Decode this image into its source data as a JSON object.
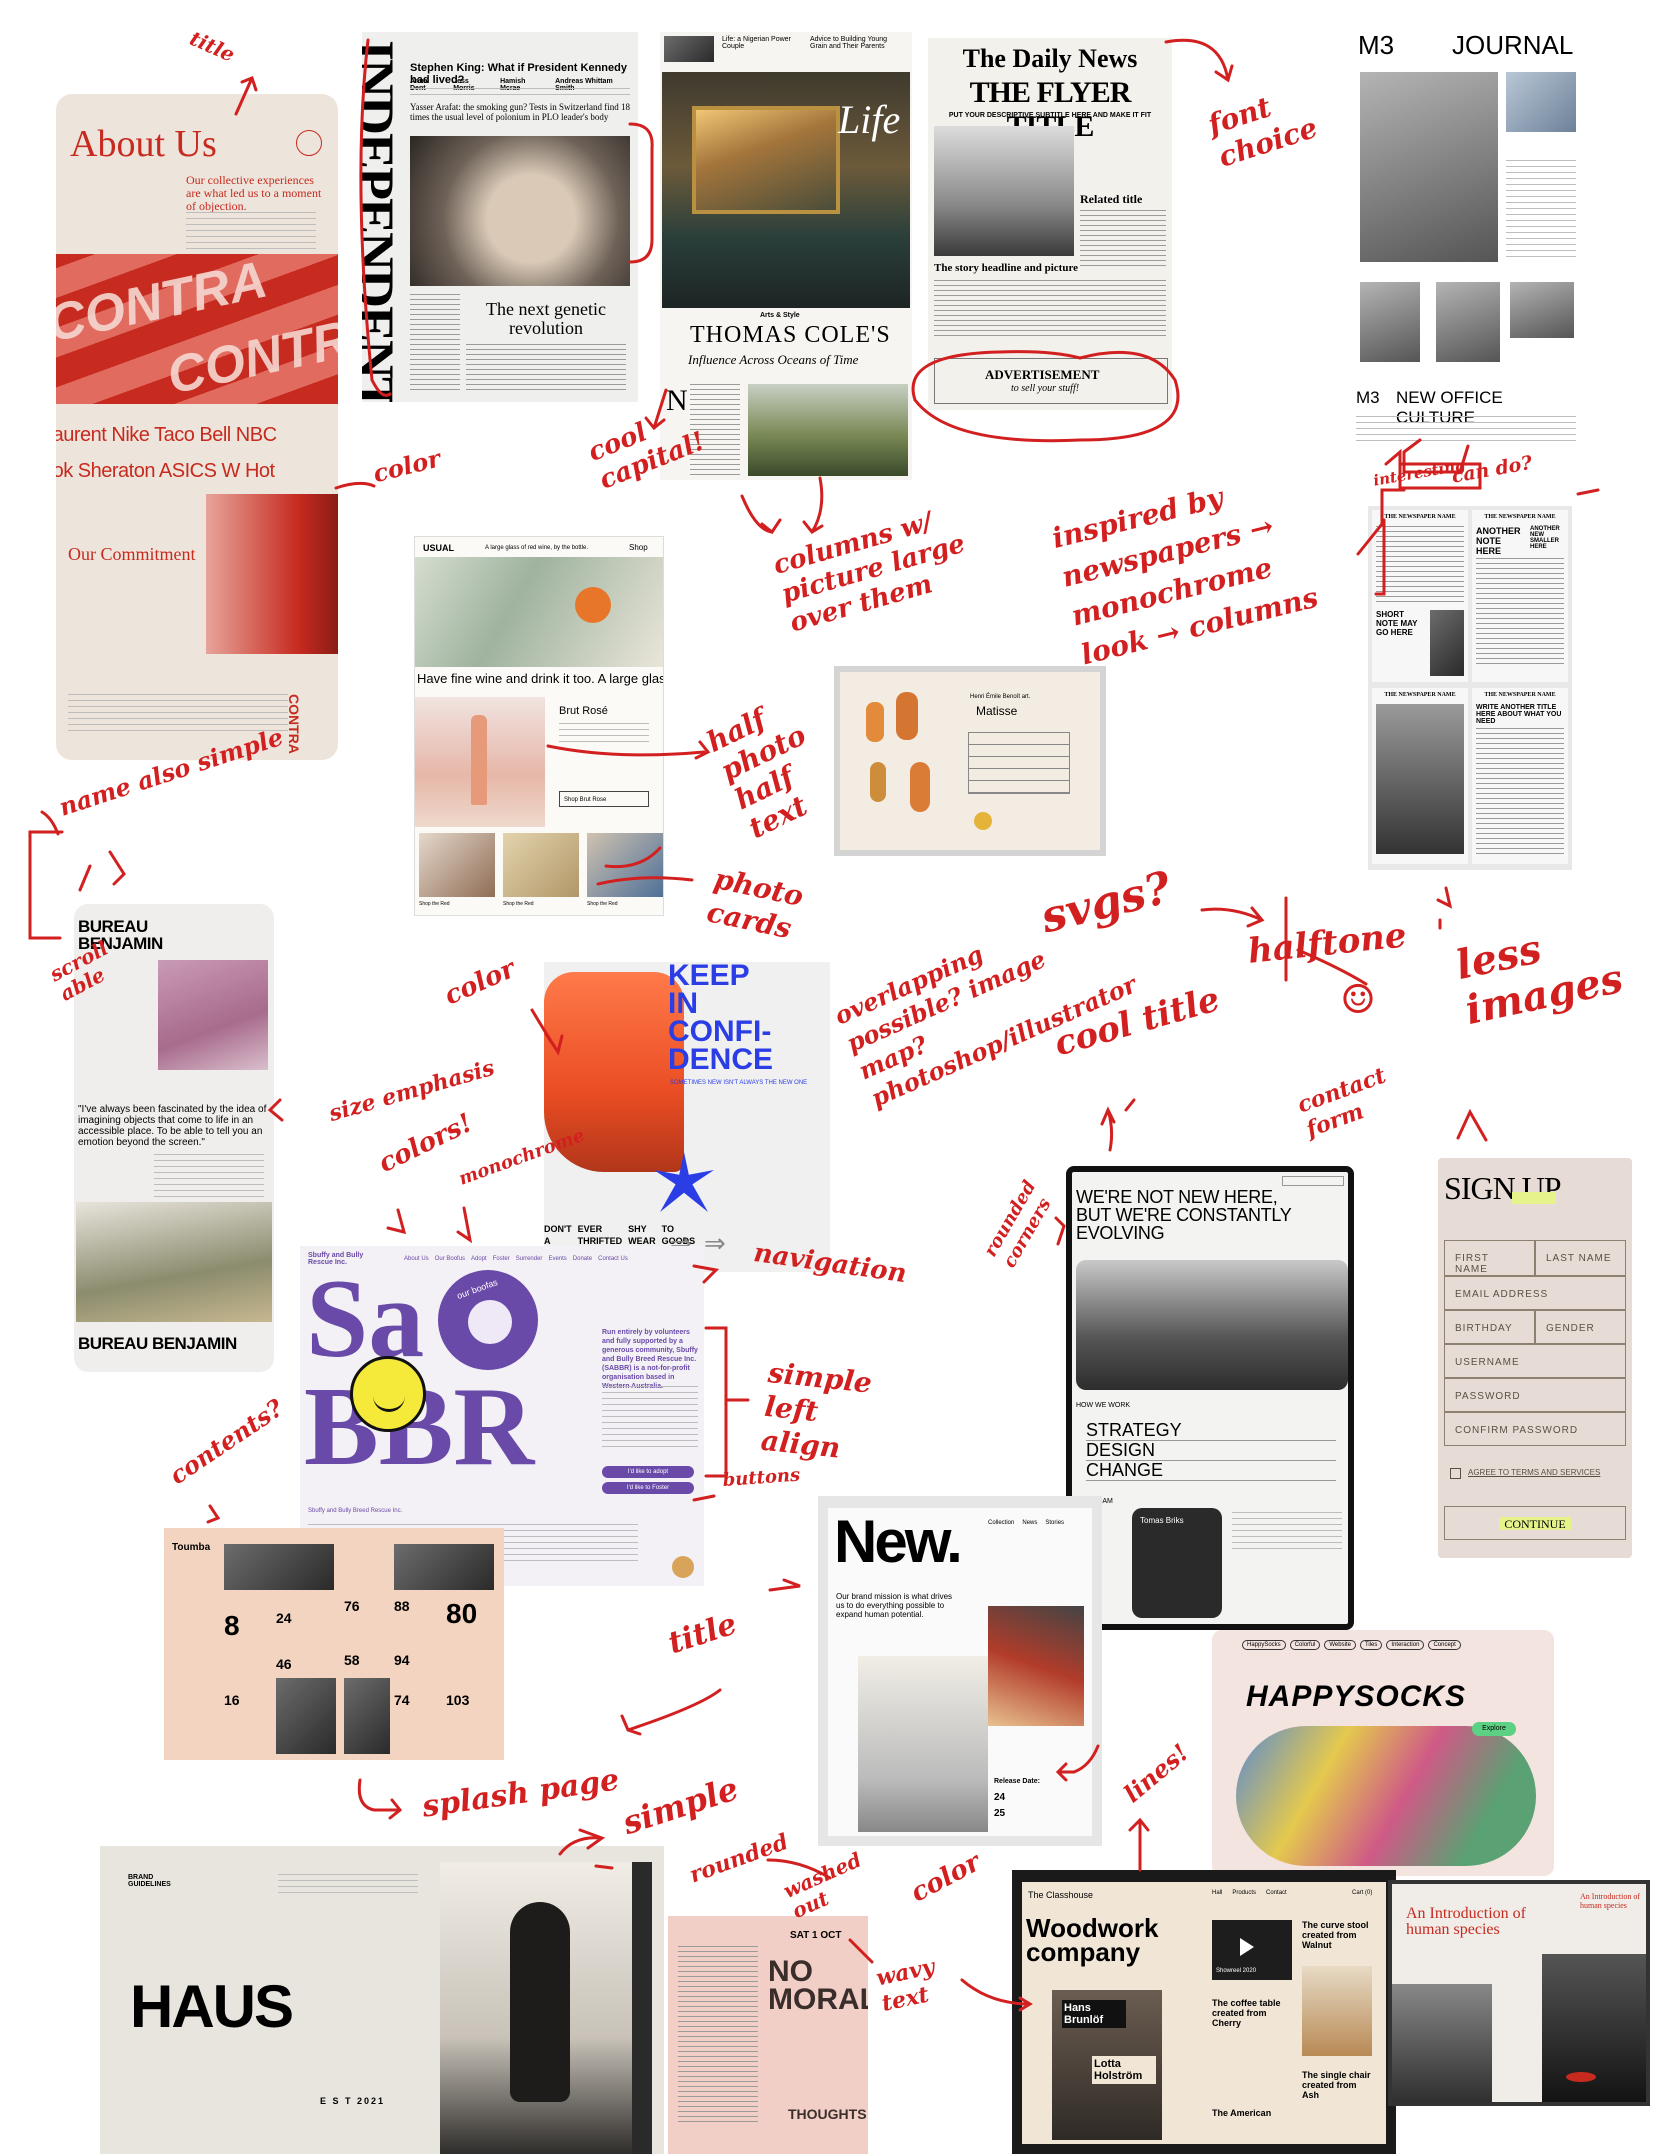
{
  "annotations": {
    "title": "title",
    "font_choice": "font choice",
    "color": "color",
    "cool_capital": "cool capital!",
    "columns_picture": "columns w/ picture large over them",
    "inspired": "inspired by newspapers → monochrome look → columns",
    "interesting": "interesting",
    "can_do": "can do?",
    "half_photo": "half photo half text",
    "photo_cards": "photo cards",
    "name_simple": "name also simple",
    "scrollable": "scroll able",
    "size_emphasis": "size emphasis",
    "colors": "colors!",
    "monochrome": "monochrome",
    "color2": "color",
    "overlapping": "overlapping possible? image map? photoshop/illustrator",
    "svgs": "svgs?",
    "halftone": "halftone",
    "less_images": "less images",
    "smiley": "☺",
    "cool_title": "cool title",
    "contact_form": "contact form",
    "rounded_corners": "rounded corners",
    "navigation": "navigation",
    "simple_left_align": "simple left align",
    "buttons": "buttons",
    "contents": "contents?",
    "title2": "title",
    "splash_page": "splash page",
    "simple": "simple",
    "rounded": "rounded",
    "washed_out": "washed out",
    "wavy_text": "wavy text",
    "color3": "color",
    "lines": "lines!"
  },
  "about": {
    "title": "About Us",
    "subtitle": "Our collective experiences are what led us to a moment of objection.",
    "brand": "CONTRA",
    "clients_row1": "Laurent  Nike  Taco Bell  NBC",
    "clients_row2": "ook  Sheraton  ASICS  W Hot",
    "commitment": "Our Commitment"
  },
  "independent": {
    "masthead": "INDEPENDENT",
    "headline1": "Stephen King: What if President Kennedy had lived?",
    "names": [
      "Anna Dent",
      "Jess Morris",
      "Hamish Mcrae",
      "Andreas Whittam Smith"
    ],
    "headline2": "Yasser Arafat: the smoking gun? Tests in Switzerland find 18 times the usual level of polonium in PLO leader's body",
    "feature": "The next genetic revolution"
  },
  "life": {
    "header1": "Life: a Nigerian Power Couple",
    "header2": "Advice to Building Young Grain and Their Parents",
    "section": "Life",
    "kicker": "Arts & Style",
    "headline": "THOMAS COLE'S",
    "subhead": "Influence Across Oceans of Time",
    "drop_cap": "N"
  },
  "daily_news": {
    "masthead": "The Daily News",
    "title": "THE FLYER TITLE",
    "subtitle": "PUT YOUR DESCRIPTIVE SUBTITLE HERE AND MAKE IT FIT",
    "related": "Related title",
    "story": "The story headline and picture",
    "ad": "ADVERTISEMENT",
    "ad_sub": "to sell your stuff!"
  },
  "m3": {
    "logo": "M3",
    "title": "JOURNAL",
    "footer_logo": "M3",
    "footer_title": "NEW OFFICE CULTURE"
  },
  "usual": {
    "brand": "USUAL",
    "tagline": "A large glass of red wine, by the bottle.",
    "shop": "Shop",
    "headline": "Have fine wine and drink it too. A large glass",
    "product": "Brut Rosé",
    "button": "Shop Brut Rose",
    "card_button": "Shop the Red"
  },
  "matisse": {
    "artist_caption": "Henri Émile Benoît art.",
    "artist": "Matisse"
  },
  "newspaper_grid": {
    "name": "THE NEWSPAPER NAME",
    "another_note": "ANOTHER NOTE HERE",
    "another_here": "ANOTHER NEW SMALLER HERE",
    "short_note": "SHORT NOTE MAY GO HERE",
    "write_title": "WRITE ANOTHER TITLE HERE ABOUT WHAT YOU NEED"
  },
  "bureau": {
    "name_top": "BUREAU BENJAMIN",
    "quote": "\"I've always been fascinated by the idea of imagining objects that come to life in an accessible place. To be able to tell you an emotion beyond the screen.\"",
    "name_bottom": "BUREAU BENJAMIN"
  },
  "keep": {
    "title_line1": "KEEP",
    "title_line2": "IN",
    "title_line3": "CONFI-",
    "title_line4": "DENCE",
    "tagline": "SOMETIMES NEW ISN'T ALWAYS THE NEW ONE",
    "nav_words": [
      "DON'T",
      "EVER",
      "SHY",
      "TO",
      "A",
      "THRIFTED",
      "WEAR",
      "GOODS"
    ]
  },
  "sabbr": {
    "header": "Sbuffy and Bully Rescue Inc.",
    "nav": [
      "About Us",
      "Our Boofus",
      "Adopt",
      "Foster",
      "Surrender",
      "Events",
      "Donate",
      "Contact Us"
    ],
    "big_top": "Sa",
    "big_bottom": "BBR",
    "badge": "our boofas",
    "intro": "Run entirely by volunteers and fully supported by a generous community, Sbuffy and Bully Breed Rescue Inc. (SABBR) is a not-for-profit organisation based in Western Australia.",
    "button1": "I'd like to adopt",
    "button2": "I'd like to Foster",
    "footer_name": "Sbuffy and Bully Breed Rescue Inc."
  },
  "evolving": {
    "headline": "WE'RE NOT NEW HERE, BUT WE'RE CONSTANTLY EVOLVING",
    "how": "HOW WE WORK",
    "items": [
      "STRATEGY",
      "DESIGN",
      "CHANGE"
    ],
    "team": "OUR TEAM",
    "member": "Tomas Briks"
  },
  "signup": {
    "title": "SIGN UP",
    "first": "FIRST NAME",
    "last": "LAST NAME",
    "email": "EMAIL ADDRESS",
    "birthday": "BIRTHDAY",
    "gender": "GENDER",
    "username": "USERNAME",
    "password": "PASSWORD",
    "confirm": "CONFIRM PASSWORD",
    "terms": "AGREE TO TERMS AND SERVICES",
    "button": "CONTINUE"
  },
  "toumba": {
    "title": "Toumba",
    "numbers": [
      "8",
      "24",
      "76",
      "88",
      "80",
      "46",
      "58",
      "94",
      "16",
      "74",
      "103"
    ]
  },
  "new": {
    "title": "New.",
    "nav": [
      "Collection",
      "News",
      "Stories"
    ],
    "mission": "Our brand mission is what drives us to do everything possible to expand human potential.",
    "release": "Release Date:",
    "dates": [
      "24",
      "25"
    ]
  },
  "happysocks": {
    "title": "HAPPYSOCKS",
    "tabs": [
      "HappySocks",
      "Colorful",
      "Website",
      "Tiles",
      "Interaction",
      "Concept"
    ],
    "explore": "Explore"
  },
  "haus": {
    "brand": "BRAND GUIDELINES",
    "title": "HAUS",
    "established": "E S T 2021"
  },
  "morals": {
    "title": "NO MORALS",
    "date": "SAT 1 OCT",
    "side": "THOUGHTS"
  },
  "woodwork": {
    "brand": "The Classhouse",
    "nav": [
      "Hall",
      "Products",
      "Contact"
    ],
    "cart": "Cart (0)",
    "title": "Woodwork company",
    "showreel": "Showreel 2020",
    "items": [
      "The curve stool created from Walnut",
      "The coffee table created from Cherry",
      "The single chair created from Ash"
    ],
    "names": [
      "Hans Brunlöf",
      "Lotta Holström"
    ],
    "bottom": "The American"
  },
  "species": {
    "title": "An Introduction of human species",
    "side": "An Introduction of human species"
  }
}
